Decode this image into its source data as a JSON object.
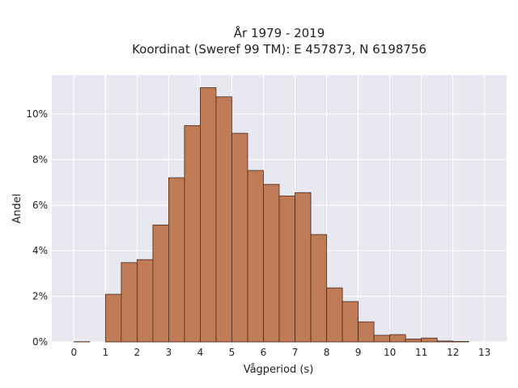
{
  "chart_data": {
    "type": "bar",
    "title_lines": [
      "År 1979 - 2019",
      "Koordinat (Sweref 99 TM): E 457873, N 6198756"
    ],
    "xlabel": "Vågperiod (s)",
    "ylabel": "Andel",
    "bin_width": 0.5,
    "bins": [
      {
        "x0": 0.0,
        "value": 0.0001
      },
      {
        "x0": 0.5,
        "value": 0.0
      },
      {
        "x0": 1.0,
        "value": 0.0209
      },
      {
        "x0": 1.5,
        "value": 0.0348
      },
      {
        "x0": 2.0,
        "value": 0.0361
      },
      {
        "x0": 2.5,
        "value": 0.0513
      },
      {
        "x0": 3.0,
        "value": 0.072
      },
      {
        "x0": 3.5,
        "value": 0.0949
      },
      {
        "x0": 4.0,
        "value": 0.1115
      },
      {
        "x0": 4.5,
        "value": 0.1075
      },
      {
        "x0": 5.0,
        "value": 0.0915
      },
      {
        "x0": 5.5,
        "value": 0.0752
      },
      {
        "x0": 6.0,
        "value": 0.0691
      },
      {
        "x0": 6.5,
        "value": 0.064
      },
      {
        "x0": 7.0,
        "value": 0.0655
      },
      {
        "x0": 7.5,
        "value": 0.0471
      },
      {
        "x0": 8.0,
        "value": 0.0237
      },
      {
        "x0": 8.5,
        "value": 0.0177
      },
      {
        "x0": 9.0,
        "value": 0.0088
      },
      {
        "x0": 9.5,
        "value": 0.0029
      },
      {
        "x0": 10.0,
        "value": 0.0032
      },
      {
        "x0": 10.5,
        "value": 0.0013
      },
      {
        "x0": 11.0,
        "value": 0.0017
      },
      {
        "x0": 11.5,
        "value": 0.0004
      },
      {
        "x0": 12.0,
        "value": 0.0002
      }
    ],
    "xticks": [
      0,
      1,
      2,
      3,
      4,
      5,
      6,
      7,
      8,
      9,
      10,
      11,
      12,
      13
    ],
    "yticks": [
      0,
      0.02,
      0.04,
      0.06,
      0.08,
      0.1
    ],
    "ytick_labels": [
      "0%",
      "2%",
      "4%",
      "6%",
      "8%",
      "10%"
    ],
    "xlim": [
      -0.7,
      13.7
    ],
    "ylim": [
      0,
      0.117
    ],
    "grid": true,
    "colors": {
      "bar_fill": "#bf7b56",
      "bar_edge": "#4a2a1a",
      "plot_bg": "#e8e8f1",
      "grid": "#ffffff"
    }
  }
}
